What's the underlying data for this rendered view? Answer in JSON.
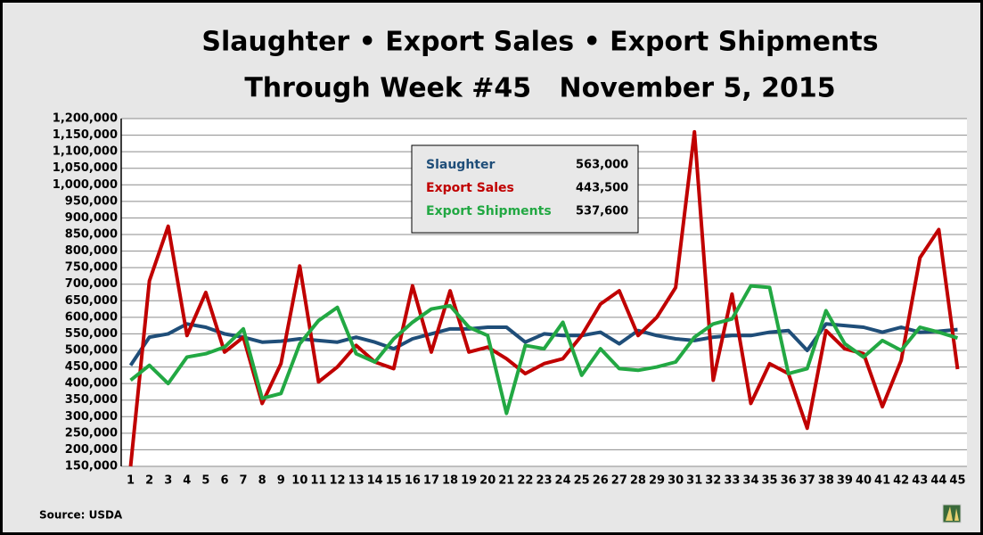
{
  "chart_data": {
    "type": "line",
    "title": "Slaughter • Export Sales • Export Shipments",
    "subtitle": "Through Week #45   November 5, 2015",
    "source": "Source: USDA",
    "categories": [
      "1",
      "2",
      "3",
      "4",
      "5",
      "6",
      "7",
      "8",
      "9",
      "10",
      "11",
      "12",
      "13",
      "14",
      "15",
      "16",
      "17",
      "18",
      "19",
      "20",
      "21",
      "22",
      "23",
      "24",
      "25",
      "26",
      "27",
      "28",
      "29",
      "30",
      "31",
      "32",
      "33",
      "34",
      "35",
      "36",
      "37",
      "38",
      "39",
      "40",
      "41",
      "42",
      "43",
      "44",
      "45"
    ],
    "series": [
      {
        "name": "Slaughter",
        "color": "#1f4e79",
        "latest_label": "563,000",
        "values": [
          455000,
          540000,
          550000,
          580000,
          570000,
          550000,
          540000,
          525000,
          528000,
          535000,
          530000,
          525000,
          540000,
          525000,
          505000,
          535000,
          550000,
          565000,
          565000,
          570000,
          570000,
          525000,
          550000,
          545000,
          545000,
          555000,
          520000,
          560000,
          545000,
          535000,
          530000,
          540000,
          545000,
          545000,
          555000,
          560000,
          500000,
          580000,
          575000,
          570000,
          555000,
          570000,
          555000,
          558000,
          563000
        ]
      },
      {
        "name": "Export Sales",
        "color": "#c00000",
        "latest_label": "443,500",
        "values": [
          150000,
          710000,
          875000,
          545000,
          675000,
          495000,
          540000,
          340000,
          460000,
          755000,
          405000,
          450000,
          515000,
          465000,
          445000,
          695000,
          495000,
          680000,
          495000,
          510000,
          475000,
          430000,
          460000,
          475000,
          545000,
          640000,
          680000,
          545000,
          600000,
          690000,
          1160000,
          410000,
          670000,
          340000,
          460000,
          430000,
          265000,
          560000,
          505000,
          490000,
          330000,
          470000,
          780000,
          865000,
          443500
        ]
      },
      {
        "name": "Export Shipments",
        "color": "#22a843",
        "latest_label": "537,600",
        "values": [
          410000,
          455000,
          400000,
          480000,
          490000,
          510000,
          565000,
          355000,
          370000,
          520000,
          590000,
          630000,
          490000,
          465000,
          535000,
          585000,
          625000,
          635000,
          570000,
          545000,
          310000,
          515000,
          505000,
          585000,
          425000,
          505000,
          445000,
          440000,
          450000,
          465000,
          540000,
          580000,
          595000,
          695000,
          690000,
          430000,
          445000,
          620000,
          520000,
          480000,
          530000,
          500000,
          570000,
          555000,
          537600
        ]
      }
    ],
    "ylim": [
      150000,
      1200000
    ],
    "yticks": [
      {
        "value": 150000,
        "label": "150,000"
      },
      {
        "value": 200000,
        "label": "200,000"
      },
      {
        "value": 250000,
        "label": "250,000"
      },
      {
        "value": 300000,
        "label": "300,000"
      },
      {
        "value": 350000,
        "label": "350,000"
      },
      {
        "value": 400000,
        "label": "400,000"
      },
      {
        "value": 450000,
        "label": "450,000"
      },
      {
        "value": 500000,
        "label": "500,000"
      },
      {
        "value": 550000,
        "label": "550,000"
      },
      {
        "value": 600000,
        "label": "600,000"
      },
      {
        "value": 650000,
        "label": "650,000"
      },
      {
        "value": 700000,
        "label": "700,000"
      },
      {
        "value": 750000,
        "label": "750,000"
      },
      {
        "value": 800000,
        "label": "800,000"
      },
      {
        "value": 850000,
        "label": "850,000"
      },
      {
        "value": 900000,
        "label": "900,000"
      },
      {
        "value": 950000,
        "label": "950,000"
      },
      {
        "value": 1000000,
        "label": "1,000,000"
      },
      {
        "value": 1050000,
        "label": "1,050,000"
      },
      {
        "value": 1100000,
        "label": "1,100,000"
      },
      {
        "value": 1150000,
        "label": "1,150,000"
      },
      {
        "value": 1200000,
        "label": "1,200,000"
      }
    ],
    "grid": true
  }
}
